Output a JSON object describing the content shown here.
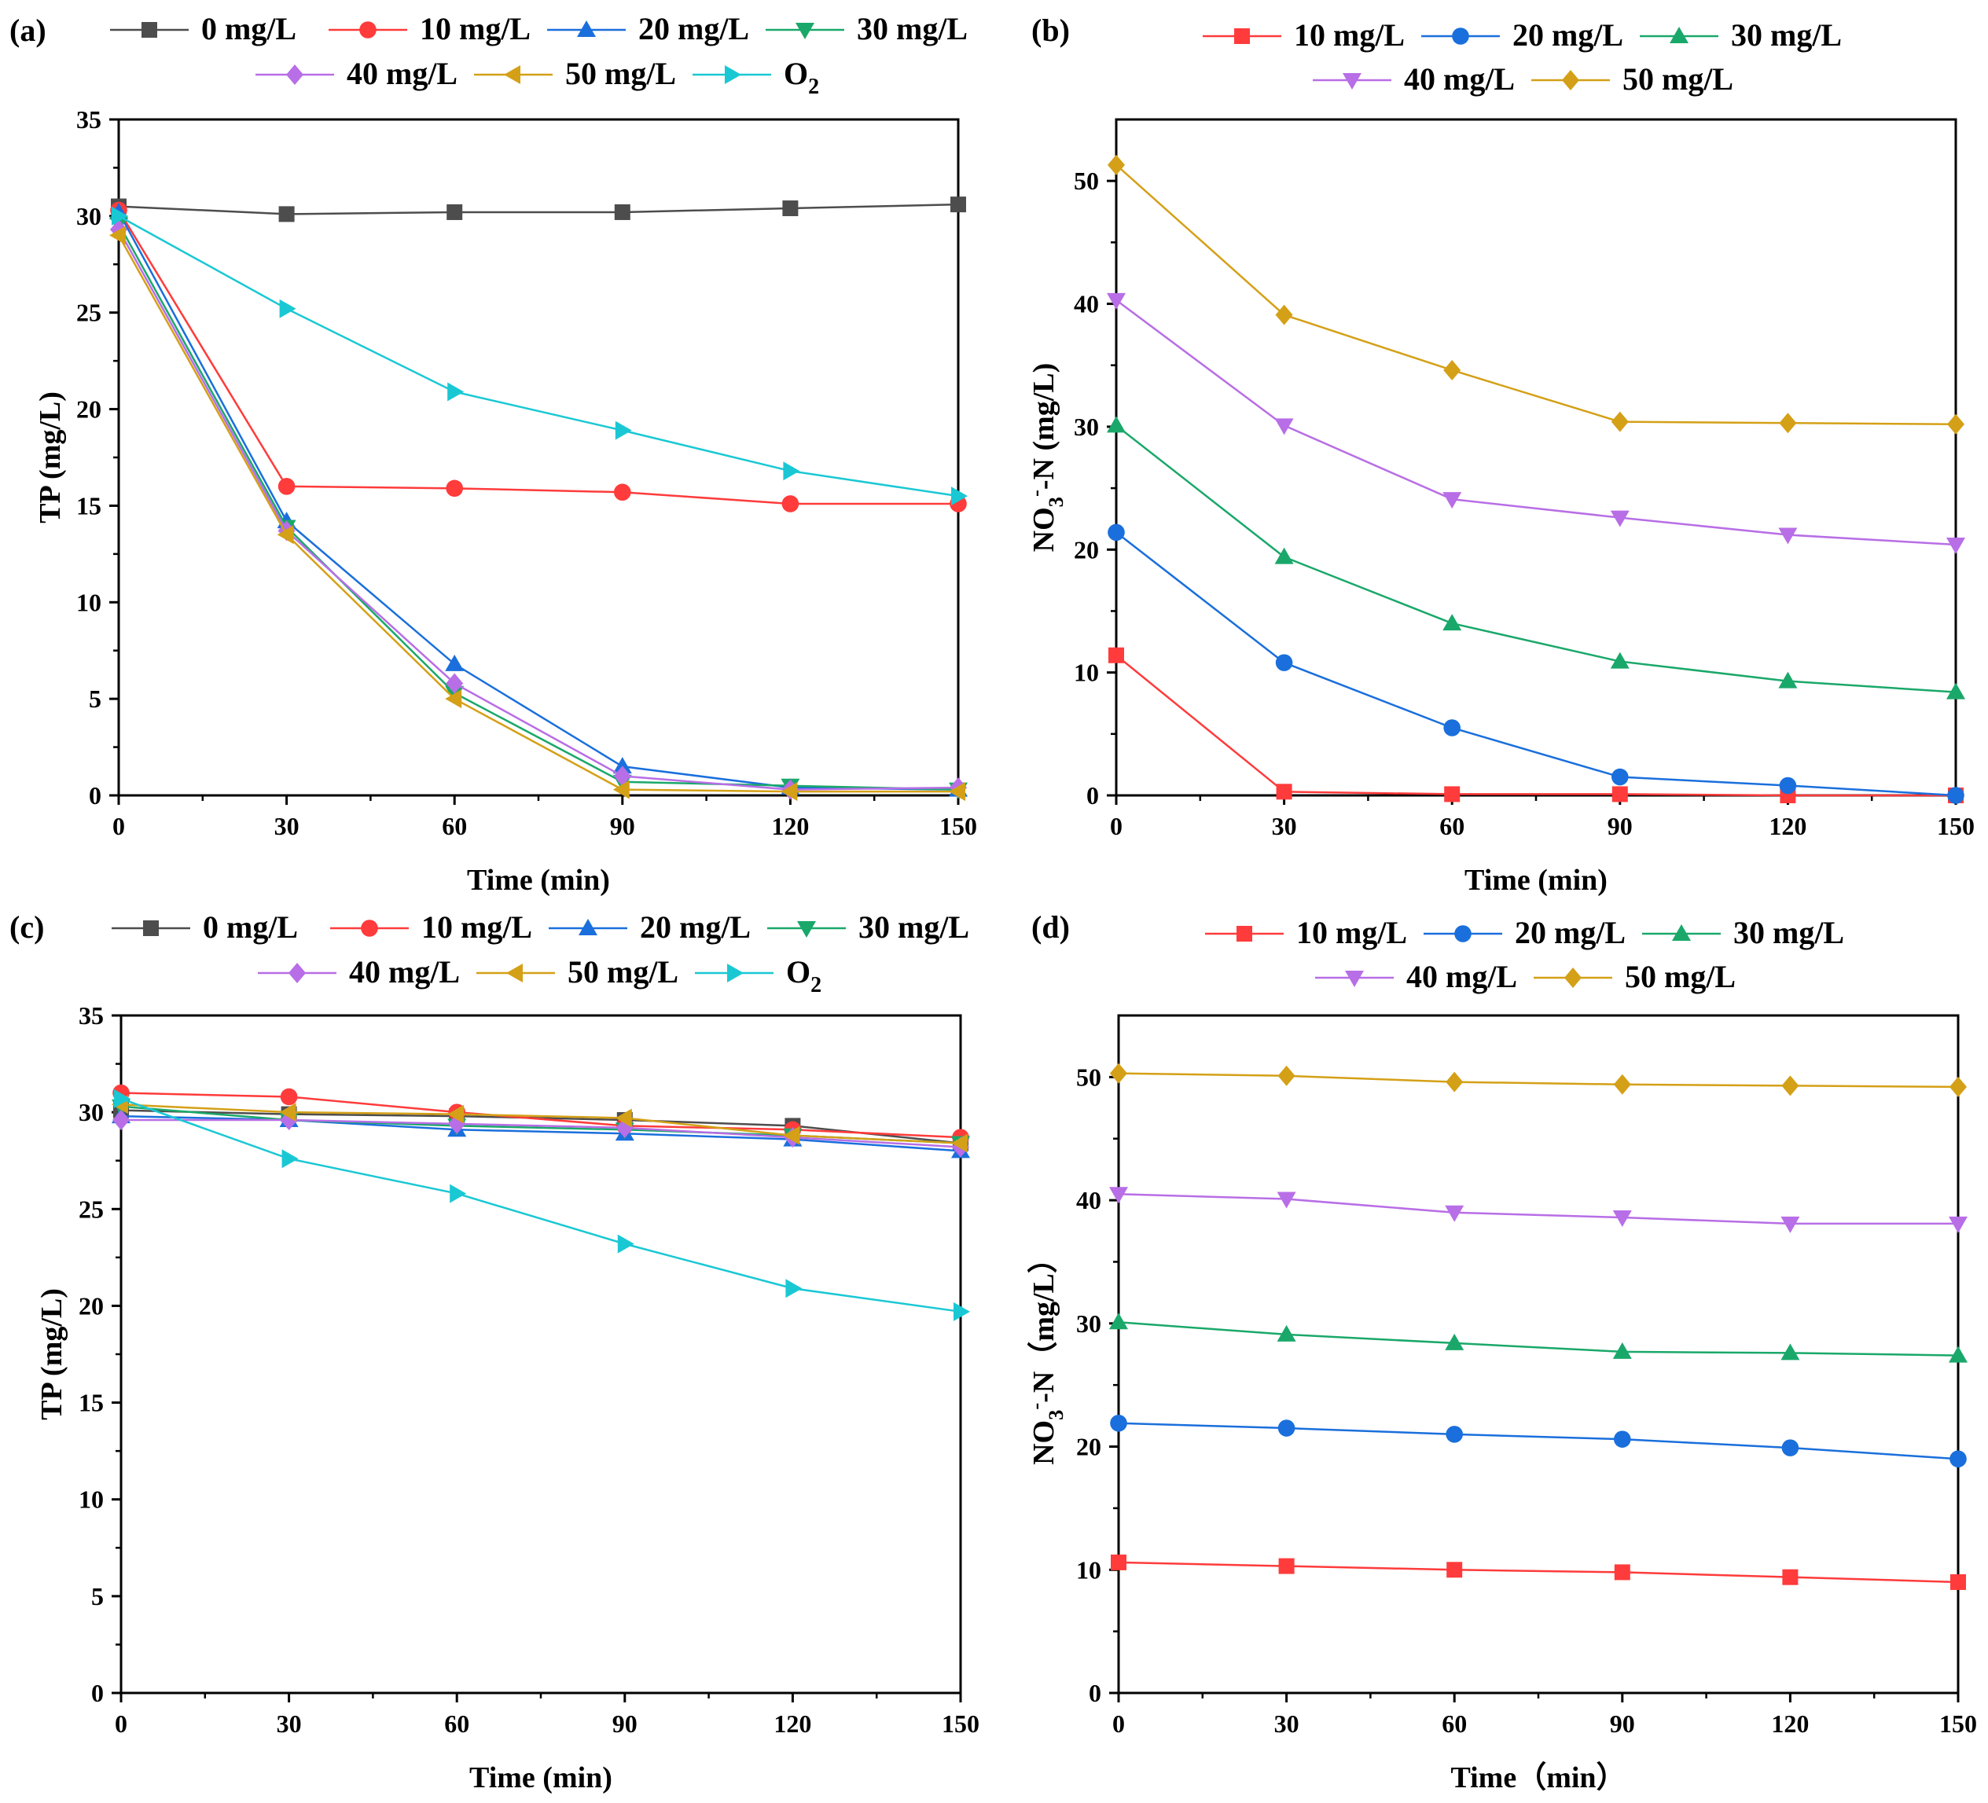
{
  "chart_data": [
    {
      "panel": "(a)",
      "type": "line",
      "xlabel": "Time (min)",
      "ylabel": "TP (mg/L)",
      "xlim": [
        0,
        150
      ],
      "ylim": [
        0,
        35
      ],
      "xticks": [
        0,
        30,
        60,
        90,
        120,
        150
      ],
      "yticks": [
        0,
        5,
        10,
        15,
        20,
        25,
        30,
        35
      ],
      "x": [
        0,
        30,
        60,
        90,
        120,
        150
      ],
      "series": [
        {
          "name": "0 mg/L",
          "marker": "square",
          "color": "#4d4d4d",
          "values": [
            30.5,
            30.1,
            30.2,
            30.2,
            30.4,
            30.6
          ]
        },
        {
          "name": "10 mg/L",
          "marker": "circle",
          "color": "#ff3b3b",
          "values": [
            30.3,
            16.0,
            15.9,
            15.7,
            15.1,
            15.1
          ]
        },
        {
          "name": "20 mg/L",
          "marker": "triangle-up",
          "color": "#1a6fdc",
          "values": [
            30.2,
            14.2,
            6.8,
            1.5,
            0.4,
            0.3
          ]
        },
        {
          "name": "30 mg/L",
          "marker": "triangle-down",
          "color": "#1aa86a",
          "values": [
            29.6,
            13.9,
            5.3,
            0.7,
            0.5,
            0.3
          ]
        },
        {
          "name": "40 mg/L",
          "marker": "diamond",
          "color": "#b86ee6",
          "values": [
            29.3,
            13.7,
            5.8,
            1.0,
            0.3,
            0.4
          ]
        },
        {
          "name": "50 mg/L",
          "marker": "triangle-left",
          "color": "#d4a017",
          "values": [
            29.0,
            13.5,
            5.0,
            0.3,
            0.2,
            0.2
          ]
        },
        {
          "name": "O_2",
          "marker": "triangle-right",
          "color": "#1ac8d4",
          "values": [
            30.0,
            25.2,
            20.9,
            18.9,
            16.8,
            15.5
          ]
        }
      ],
      "legend": [
        "0 mg/L",
        "10 mg/L",
        "20 mg/L",
        "30 mg/L",
        "40 mg/L",
        "50 mg/L",
        "O_2"
      ]
    },
    {
      "panel": "(b)",
      "type": "line",
      "xlabel": "Time (min)",
      "ylabel": "NO_3^--N (mg/L)",
      "xlim": [
        0,
        150
      ],
      "ylim": [
        0,
        55
      ],
      "xticks": [
        0,
        30,
        60,
        90,
        120,
        150
      ],
      "yticks": [
        0,
        10,
        20,
        30,
        40,
        50
      ],
      "x": [
        0,
        30,
        60,
        90,
        120,
        150
      ],
      "series": [
        {
          "name": "10 mg/L",
          "marker": "square",
          "color": "#ff3b3b",
          "values": [
            11.4,
            0.3,
            0.1,
            0.1,
            0.0,
            0.0
          ]
        },
        {
          "name": "20 mg/L",
          "marker": "circle",
          "color": "#1a6fdc",
          "values": [
            21.4,
            10.8,
            5.5,
            1.5,
            0.8,
            0.0
          ]
        },
        {
          "name": "30 mg/L",
          "marker": "triangle-up",
          "color": "#1aa86a",
          "values": [
            30.1,
            19.4,
            14.0,
            10.9,
            9.3,
            8.4
          ]
        },
        {
          "name": "40 mg/L",
          "marker": "triangle-down",
          "color": "#b86ee6",
          "values": [
            40.3,
            30.1,
            24.1,
            22.6,
            21.2,
            20.4
          ]
        },
        {
          "name": "50 mg/L",
          "marker": "diamond",
          "color": "#d4a017",
          "values": [
            51.3,
            39.1,
            34.6,
            30.4,
            30.3,
            30.2
          ]
        }
      ],
      "legend": [
        "10 mg/L",
        "20 mg/L",
        "30 mg/L",
        "40 mg/L",
        "50 mg/L"
      ]
    },
    {
      "panel": "(c)",
      "type": "line",
      "xlabel": "Time (min)",
      "ylabel": "TP (mg/L)",
      "xlim": [
        0,
        150
      ],
      "ylim": [
        0,
        35
      ],
      "xticks": [
        0,
        30,
        60,
        90,
        120,
        150
      ],
      "yticks": [
        0,
        5,
        10,
        15,
        20,
        25,
        30,
        35
      ],
      "x": [
        0,
        30,
        60,
        90,
        120,
        150
      ],
      "series": [
        {
          "name": "0 mg/L",
          "marker": "square",
          "color": "#4d4d4d",
          "values": [
            30.1,
            29.9,
            29.8,
            29.6,
            29.3,
            28.4
          ]
        },
        {
          "name": "10 mg/L",
          "marker": "circle",
          "color": "#ff3b3b",
          "values": [
            31.0,
            30.8,
            30.0,
            29.3,
            29.1,
            28.7
          ]
        },
        {
          "name": "20 mg/L",
          "marker": "triangle-up",
          "color": "#1a6fdc",
          "values": [
            29.8,
            29.6,
            29.1,
            28.9,
            28.6,
            28.0
          ]
        },
        {
          "name": "30 mg/L",
          "marker": "triangle-down",
          "color": "#1aa86a",
          "values": [
            30.3,
            29.6,
            29.3,
            29.1,
            28.8,
            28.4
          ]
        },
        {
          "name": "40 mg/L",
          "marker": "diamond",
          "color": "#b86ee6",
          "values": [
            29.6,
            29.6,
            29.4,
            29.2,
            28.7,
            28.2
          ]
        },
        {
          "name": "50 mg/L",
          "marker": "triangle-left",
          "color": "#d4a017",
          "values": [
            30.4,
            30.0,
            29.9,
            29.7,
            28.8,
            28.4
          ]
        },
        {
          "name": "O_2",
          "marker": "triangle-right",
          "color": "#1ac8d4",
          "values": [
            30.7,
            27.6,
            25.8,
            23.2,
            20.9,
            19.7
          ]
        }
      ],
      "legend": [
        "0 mg/L",
        "10 mg/L",
        "20 mg/L",
        "30 mg/L",
        "40 mg/L",
        "50 mg/L",
        "O_2"
      ]
    },
    {
      "panel": "(d)",
      "type": "line",
      "xlabel": "Time（min）",
      "ylabel": "NO_3^--N（mg/L）",
      "xlim": [
        0,
        150
      ],
      "ylim": [
        0,
        55
      ],
      "xticks": [
        0,
        30,
        60,
        90,
        120,
        150
      ],
      "yticks": [
        0,
        10,
        20,
        30,
        40,
        50
      ],
      "x": [
        0,
        30,
        60,
        90,
        120,
        150
      ],
      "series": [
        {
          "name": "10 mg/L",
          "marker": "square",
          "color": "#ff3b3b",
          "values": [
            10.6,
            10.3,
            10.0,
            9.8,
            9.4,
            9.0
          ]
        },
        {
          "name": "20 mg/L",
          "marker": "circle",
          "color": "#1a6fdc",
          "values": [
            21.9,
            21.5,
            21.0,
            20.6,
            19.9,
            19.0
          ]
        },
        {
          "name": "30 mg/L",
          "marker": "triangle-up",
          "color": "#1aa86a",
          "values": [
            30.1,
            29.1,
            28.4,
            27.7,
            27.6,
            27.4
          ]
        },
        {
          "name": "40 mg/L",
          "marker": "triangle-down",
          "color": "#b86ee6",
          "values": [
            40.5,
            40.1,
            39.0,
            38.6,
            38.1,
            38.1
          ]
        },
        {
          "name": "50 mg/L",
          "marker": "diamond",
          "color": "#d4a017",
          "values": [
            50.3,
            50.1,
            49.6,
            49.4,
            49.3,
            49.2
          ]
        }
      ],
      "legend": [
        "10 mg/L",
        "20 mg/L",
        "30 mg/L",
        "40 mg/L",
        "50 mg/L"
      ]
    }
  ]
}
